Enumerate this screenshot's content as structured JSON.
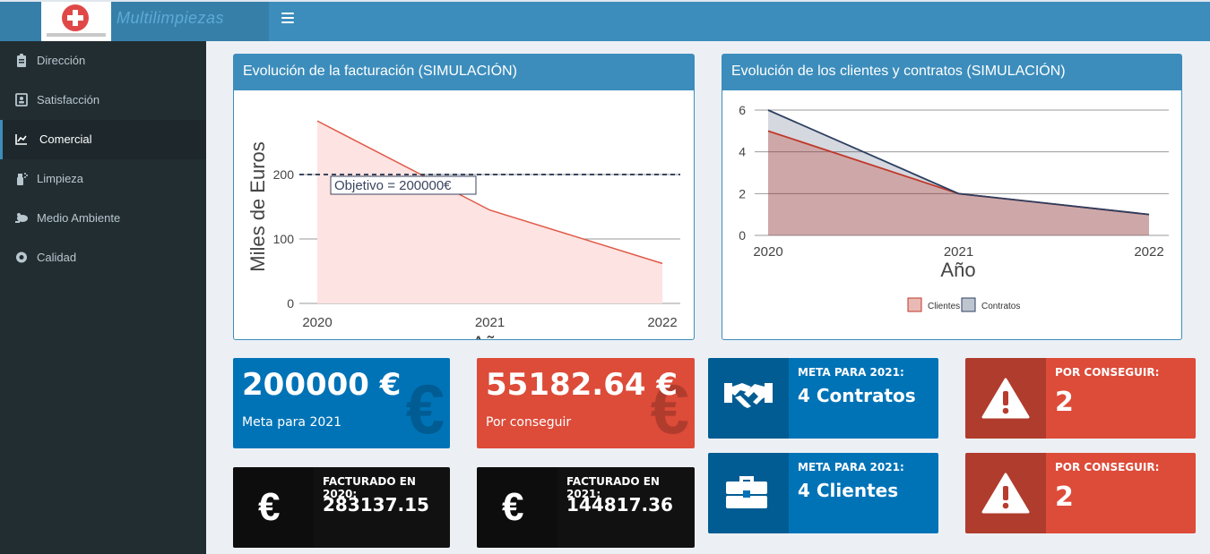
{
  "header": {
    "brand": "Multilimpiezas",
    "logo_caption": "Multilimpiezas"
  },
  "sidebar": {
    "items": [
      {
        "label": "Dirección",
        "icon": "clipboard-icon",
        "active": false
      },
      {
        "label": "Satisfacción",
        "icon": "contact-card-icon",
        "active": false
      },
      {
        "label": "Comercial",
        "icon": "line-chart-icon",
        "active": true
      },
      {
        "label": "Limpieza",
        "icon": "spray-icon",
        "active": false
      },
      {
        "label": "Medio Ambiente",
        "icon": "frog-icon",
        "active": false
      },
      {
        "label": "Calidad",
        "icon": "certificate-icon",
        "active": false
      }
    ]
  },
  "boxes": {
    "billing_title": "Evolución de la facturación (SIMULACIÓN)",
    "clients_title": "Evolución de los clientes y contratos (SIMULACIÓN)"
  },
  "chart_data": [
    {
      "type": "area",
      "x": [
        2020,
        2021,
        2022
      ],
      "xticks": [
        "2020",
        "2021",
        "2022"
      ],
      "series": [
        {
          "values": [
            283.14,
            144.82,
            62.0
          ],
          "color": "#e05a47"
        }
      ],
      "target_line": {
        "value": 200,
        "label": "Objetivo = 200000€"
      },
      "xlabel": "Año",
      "ylabel": "Miles de Euros",
      "yticks": [
        0,
        100,
        200
      ],
      "ylim": [
        0,
        300
      ],
      "grid": true
    },
    {
      "type": "area",
      "x": [
        2020,
        2021,
        2022
      ],
      "xticks": [
        "2020",
        "2021",
        "2022"
      ],
      "series": [
        {
          "name": "Clientes",
          "values": [
            5,
            2,
            1
          ],
          "color": "#c0392b"
        },
        {
          "name": "Contratos",
          "values": [
            6,
            2,
            1
          ],
          "color": "#2c3e60"
        }
      ],
      "xlabel": "Año",
      "ylabel": "",
      "yticks": [
        0,
        2,
        4,
        6
      ],
      "ylim": [
        0,
        6
      ],
      "grid": true,
      "legend": "bottom"
    }
  ],
  "value_boxes": {
    "meta_billing": {
      "value": "200000 €",
      "subtitle": "Meta para 2021",
      "color": "#0073b7",
      "icon": "euro-icon"
    },
    "pending_billing": {
      "value": "55182.64 €",
      "subtitle": "Por conseguir",
      "color": "#dd4b39",
      "icon": "euro-icon"
    },
    "billed_2020": {
      "label": "FACTURADO EN 2020:",
      "value": "283137.15",
      "icon": "euro-icon"
    },
    "billed_2021": {
      "label": "FACTURADO EN 2021:",
      "value": "144817.36",
      "icon": "euro-icon"
    },
    "meta_contracts": {
      "label": "META PARA 2021:",
      "value": "4 Contratos",
      "icon": "handshake-icon"
    },
    "meta_clients": {
      "label": "META PARA 2021:",
      "value": "4 Clientes",
      "icon": "briefcase-icon"
    },
    "pending_contracts": {
      "label": "POR CONSEGUIR:",
      "value": "2",
      "icon": "warning-icon"
    },
    "pending_clients": {
      "label": "POR CONSEGUIR:",
      "value": "2",
      "icon": "warning-icon"
    }
  },
  "icons": {
    "euro": "€"
  }
}
